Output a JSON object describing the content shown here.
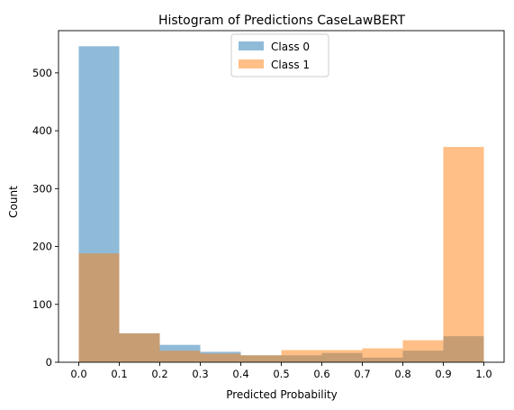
{
  "chart_data": {
    "type": "bar",
    "subtype": "histogram",
    "title": "Histogram of Predictions CaseLawBERT",
    "xlabel": "Predicted Probability",
    "ylabel": "Count",
    "bin_edges": [
      0.0,
      0.1,
      0.2,
      0.3,
      0.4,
      0.5,
      0.6,
      0.7,
      0.8,
      0.9,
      1.0
    ],
    "x_ticks": [
      "0.0",
      "0.1",
      "0.2",
      "0.3",
      "0.4",
      "0.5",
      "0.6",
      "0.7",
      "0.8",
      "0.9",
      "1.0"
    ],
    "y_ticks": [
      "0",
      "100",
      "200",
      "300",
      "400",
      "500"
    ],
    "y_tick_values": [
      0,
      100,
      200,
      300,
      400,
      500
    ],
    "xlim": [
      -0.05,
      1.05
    ],
    "ylim": [
      0,
      573
    ],
    "grid": false,
    "legend_position": "top-center",
    "series": [
      {
        "name": "Class 0",
        "color": "#1f77b4",
        "alpha": 0.5,
        "values": [
          546,
          50,
          30,
          18,
          12,
          12,
          16,
          8,
          20,
          45
        ]
      },
      {
        "name": "Class 1",
        "color": "#ff7f0e",
        "alpha": 0.5,
        "values": [
          188,
          50,
          20,
          15,
          12,
          21,
          21,
          24,
          38,
          372
        ]
      }
    ]
  }
}
